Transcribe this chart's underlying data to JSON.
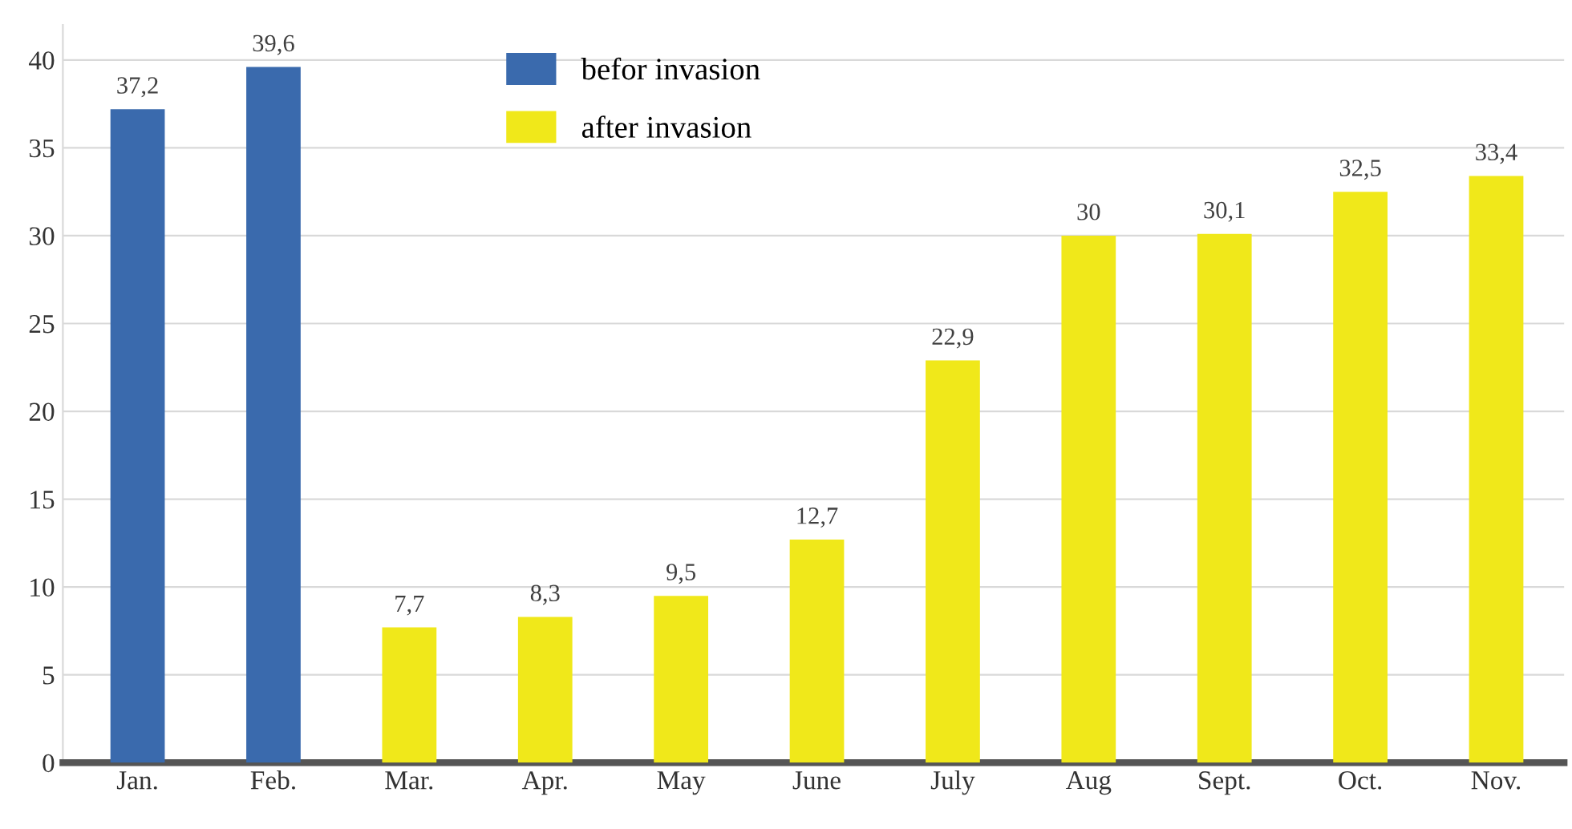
{
  "chart_data": {
    "type": "bar",
    "stacked": true,
    "categories": [
      "Jan.",
      "Feb.",
      "Mar.",
      "Apr.",
      "May",
      "June",
      "July",
      "Aug",
      "Sept.",
      "Oct.",
      "Nov."
    ],
    "series": [
      {
        "name": "befor invasion",
        "color": "#3a6aad",
        "values": [
          37.2,
          39.6,
          null,
          null,
          null,
          null,
          null,
          null,
          null,
          null,
          null
        ],
        "value_labels": [
          "37,2",
          "39,6",
          null,
          null,
          null,
          null,
          null,
          null,
          null,
          null,
          null
        ]
      },
      {
        "name": "after invasion",
        "color": "#f0e81a",
        "values": [
          null,
          null,
          7.7,
          8.3,
          9.5,
          12.7,
          22.9,
          30,
          30.1,
          32.5,
          33.4
        ],
        "value_labels": [
          null,
          null,
          "7,7",
          "8,3",
          "9,5",
          "12,7",
          "22,9",
          "30",
          "30,1",
          "32,5",
          "33,4"
        ]
      }
    ],
    "ylim": [
      0,
      42
    ],
    "yticks": [
      0,
      5,
      10,
      15,
      20,
      25,
      30,
      35,
      40
    ],
    "grid": "y",
    "legend": "top"
  }
}
